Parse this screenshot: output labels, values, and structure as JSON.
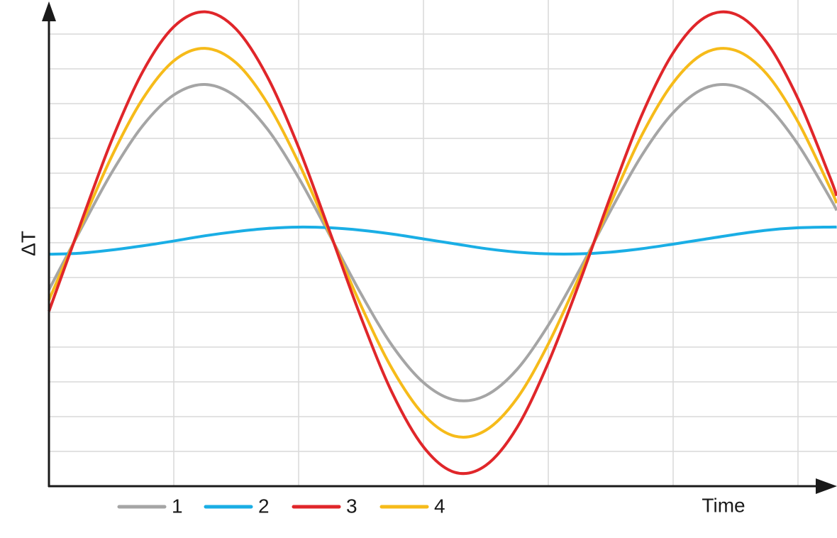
{
  "chart_data": {
    "type": "line",
    "x_label": "Time",
    "y_label": "ΔT",
    "x": [
      0,
      0.25,
      0.5,
      0.75,
      1,
      1.25,
      1.5,
      1.75,
      2,
      2.25,
      2.5,
      2.75,
      3,
      3.25,
      3.5,
      3.75,
      4,
      4.25,
      4.5,
      4.75,
      5,
      5.25,
      5.5,
      5.75,
      6,
      6.25,
      6.31
    ],
    "series": [
      {
        "name": "1",
        "color": "#a5a5a5",
        "values": [
          5.65,
          7.35,
          9.0,
          10.36,
          11.25,
          11.55,
          11.2,
          10.27,
          8.87,
          7.21,
          5.53,
          4.04,
          2.98,
          2.48,
          2.61,
          3.36,
          4.63,
          6.22,
          7.93,
          9.52,
          10.74,
          11.44,
          11.5,
          10.95,
          9.83,
          8.33,
          7.93
        ]
      },
      {
        "name": "2",
        "color": "#1aaee5",
        "values": [
          6.67,
          6.7,
          6.79,
          6.91,
          7.05,
          7.2,
          7.32,
          7.41,
          7.45,
          7.43,
          7.36,
          7.25,
          7.11,
          6.97,
          6.83,
          6.73,
          6.68,
          6.68,
          6.73,
          6.83,
          6.96,
          7.1,
          7.24,
          7.36,
          7.43,
          7.45,
          7.45
        ]
      },
      {
        "name": "3",
        "color": "#e0262a",
        "values": [
          5.03,
          7.51,
          9.92,
          11.91,
          13.21,
          13.64,
          13.14,
          11.77,
          9.74,
          7.31,
          4.85,
          2.68,
          1.13,
          0.4,
          0.6,
          1.69,
          3.55,
          5.86,
          8.35,
          10.68,
          12.46,
          13.47,
          13.57,
          12.76,
          11.14,
          8.94,
          8.35
        ]
      },
      {
        "name": "4",
        "color": "#f6bb1a",
        "values": [
          5.35,
          7.43,
          9.46,
          11.13,
          12.23,
          12.59,
          12.17,
          11.01,
          9.3,
          7.26,
          5.19,
          3.37,
          2.06,
          1.44,
          1.61,
          2.53,
          4.09,
          6.04,
          8.14,
          10.1,
          11.6,
          12.45,
          12.53,
          11.85,
          10.48,
          8.63,
          8.14
        ]
      }
    ],
    "xlim": [
      0,
      6.31
    ],
    "xticks": [
      1,
      2,
      3,
      4,
      5,
      6
    ],
    "ylim": [
      0,
      14
    ],
    "yticks": [
      1,
      2,
      3,
      4,
      5,
      6,
      7,
      8,
      9,
      10,
      11,
      12,
      13
    ],
    "grid": true
  }
}
